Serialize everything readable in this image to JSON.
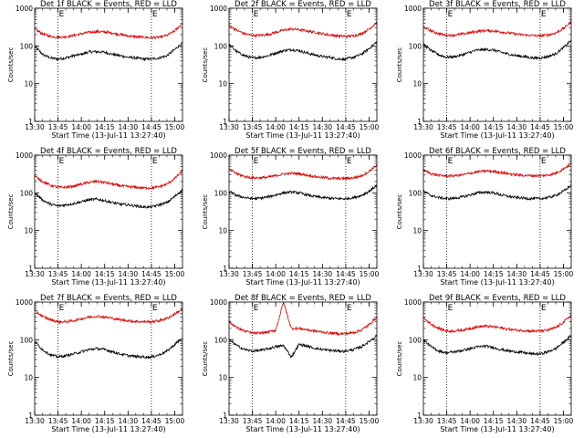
{
  "figure": {
    "type": "line-grid",
    "rows": 3,
    "cols": 3
  },
  "time_axis": {
    "start": "13:30",
    "end": "15:05",
    "tick_labels": [
      "13:30",
      "13:45",
      "14:00",
      "14:15",
      "14:30",
      "14:45",
      "15:00"
    ],
    "tick_minutes": [
      0,
      15,
      30,
      45,
      60,
      75,
      90
    ],
    "xlabel": "Start Time (13-Jul-11 13:27:40)"
  },
  "y_axis": {
    "scale": "log",
    "range": [
      1,
      1000
    ],
    "tick_labels": [
      "1",
      "10",
      "100",
      "1000"
    ],
    "ylabel": "Counts/sec"
  },
  "markers": {
    "label": "E",
    "lines_at": [
      "13:45",
      "14:45"
    ]
  },
  "colors": {
    "events": "#000000",
    "lld": "#dd0000",
    "frame": "#000000"
  },
  "chart_data": [
    {
      "type": "line",
      "title": "Det 1f BLACK = Events, RED = LLD",
      "x": [
        "13:30",
        "13:35",
        "13:40",
        "13:45",
        "13:50",
        "13:55",
        "14:00",
        "14:05",
        "14:10",
        "14:15",
        "14:20",
        "14:25",
        "14:30",
        "14:35",
        "14:40",
        "14:45",
        "14:50",
        "14:55",
        "15:00",
        "15:05"
      ],
      "series": [
        {
          "name": "Events",
          "values": [
            100,
            60,
            48,
            45,
            48,
            55,
            60,
            70,
            70,
            68,
            60,
            55,
            50,
            48,
            45,
            45,
            48,
            55,
            80,
            120
          ]
        },
        {
          "name": "LLD",
          "values": [
            280,
            210,
            180,
            170,
            175,
            190,
            210,
            230,
            240,
            235,
            220,
            200,
            185,
            175,
            170,
            165,
            170,
            190,
            250,
            400
          ]
        }
      ]
    },
    {
      "type": "line",
      "title": "Det 2f BLACK = Events, RED = LLD",
      "x": [
        "13:30",
        "13:35",
        "13:40",
        "13:45",
        "13:50",
        "13:55",
        "14:00",
        "14:05",
        "14:10",
        "14:15",
        "14:20",
        "14:25",
        "14:30",
        "14:35",
        "14:40",
        "14:45",
        "14:50",
        "14:55",
        "15:00",
        "15:05"
      ],
      "series": [
        {
          "name": "Events",
          "values": [
            110,
            70,
            55,
            48,
            50,
            55,
            65,
            75,
            80,
            75,
            65,
            58,
            52,
            50,
            45,
            45,
            50,
            60,
            85,
            130
          ]
        },
        {
          "name": "LLD",
          "values": [
            350,
            260,
            210,
            190,
            190,
            200,
            230,
            260,
            280,
            270,
            250,
            230,
            210,
            195,
            185,
            180,
            185,
            210,
            280,
            420
          ]
        }
      ]
    },
    {
      "type": "line",
      "title": "Det 3f BLACK = Events, RED = LLD",
      "x": [
        "13:30",
        "13:35",
        "13:40",
        "13:45",
        "13:50",
        "13:55",
        "14:00",
        "14:05",
        "14:10",
        "14:15",
        "14:20",
        "14:25",
        "14:30",
        "14:35",
        "14:40",
        "14:45",
        "14:50",
        "14:55",
        "15:00",
        "15:05"
      ],
      "series": [
        {
          "name": "Events",
          "values": [
            110,
            75,
            58,
            50,
            52,
            58,
            68,
            78,
            80,
            78,
            68,
            60,
            55,
            52,
            48,
            48,
            52,
            62,
            90,
            140
          ]
        },
        {
          "name": "LLD",
          "values": [
            320,
            250,
            210,
            190,
            195,
            205,
            225,
            245,
            255,
            250,
            235,
            220,
            205,
            195,
            190,
            185,
            195,
            220,
            290,
            430
          ]
        }
      ]
    },
    {
      "type": "line",
      "title": "Det 4f BLACK = Events, RED = LLD",
      "x": [
        "13:30",
        "13:35",
        "13:40",
        "13:45",
        "13:50",
        "13:55",
        "14:00",
        "14:05",
        "14:10",
        "14:15",
        "14:20",
        "14:25",
        "14:30",
        "14:35",
        "14:40",
        "14:45",
        "14:50",
        "14:55",
        "15:00",
        "15:05"
      ],
      "series": [
        {
          "name": "Events",
          "values": [
            100,
            65,
            50,
            45,
            48,
            52,
            58,
            65,
            68,
            62,
            55,
            50,
            48,
            45,
            42,
            42,
            48,
            55,
            80,
            120
          ]
        },
        {
          "name": "LLD",
          "values": [
            280,
            200,
            160,
            140,
            140,
            150,
            170,
            190,
            200,
            190,
            170,
            155,
            145,
            140,
            135,
            135,
            145,
            170,
            240,
            380
          ]
        }
      ]
    },
    {
      "type": "line",
      "title": "Det 5f BLACK = Events, RED = LLD",
      "x": [
        "13:30",
        "13:35",
        "13:40",
        "13:45",
        "13:50",
        "13:55",
        "14:00",
        "14:05",
        "14:10",
        "14:15",
        "14:20",
        "14:25",
        "14:30",
        "14:35",
        "14:40",
        "14:45",
        "14:50",
        "14:55",
        "15:00",
        "15:05"
      ],
      "series": [
        {
          "name": "Events",
          "values": [
            110,
            85,
            75,
            70,
            72,
            78,
            88,
            100,
            105,
            100,
            88,
            80,
            75,
            72,
            70,
            70,
            75,
            85,
            110,
            160
          ]
        },
        {
          "name": "LLD",
          "values": [
            420,
            320,
            270,
            250,
            250,
            260,
            285,
            315,
            330,
            320,
            295,
            270,
            255,
            245,
            240,
            240,
            250,
            280,
            370,
            550
          ]
        }
      ]
    },
    {
      "type": "line",
      "title": "Det 6f BLACK = Events, RED = LLD",
      "x": [
        "13:30",
        "13:35",
        "13:40",
        "13:45",
        "13:50",
        "13:55",
        "14:00",
        "14:05",
        "14:10",
        "14:15",
        "14:20",
        "14:25",
        "14:30",
        "14:35",
        "14:40",
        "14:45",
        "14:50",
        "14:55",
        "15:00",
        "15:05"
      ],
      "series": [
        {
          "name": "Events",
          "values": [
            110,
            85,
            75,
            70,
            72,
            78,
            88,
            100,
            105,
            100,
            88,
            80,
            75,
            72,
            70,
            70,
            75,
            85,
            110,
            160
          ]
        },
        {
          "name": "LLD",
          "values": [
            400,
            320,
            290,
            280,
            285,
            300,
            330,
            360,
            380,
            370,
            345,
            320,
            300,
            290,
            285,
            285,
            295,
            330,
            430,
            600
          ]
        }
      ]
    },
    {
      "type": "line",
      "title": "Det 7f BLACK = Events, RED = LLD",
      "x": [
        "13:30",
        "13:35",
        "13:40",
        "13:45",
        "13:50",
        "13:55",
        "14:00",
        "14:05",
        "14:10",
        "14:15",
        "14:20",
        "14:25",
        "14:30",
        "14:35",
        "14:40",
        "14:45",
        "14:50",
        "14:55",
        "15:00",
        "15:05"
      ],
      "series": [
        {
          "name": "Events",
          "values": [
            90,
            55,
            40,
            35,
            38,
            42,
            48,
            55,
            58,
            55,
            48,
            42,
            38,
            36,
            35,
            35,
            40,
            50,
            75,
            110
          ]
        },
        {
          "name": "LLD",
          "values": [
            600,
            420,
            340,
            300,
            300,
            320,
            360,
            400,
            420,
            400,
            370,
            340,
            320,
            305,
            300,
            300,
            320,
            370,
            480,
            650
          ]
        }
      ]
    },
    {
      "type": "line",
      "title": "Det 8f BLACK = Events, RED = LLD",
      "x": [
        "13:30",
        "13:35",
        "13:40",
        "13:45",
        "13:50",
        "13:55",
        "14:00",
        "14:05",
        "14:10",
        "14:15",
        "14:20",
        "14:25",
        "14:30",
        "14:35",
        "14:40",
        "14:45",
        "14:50",
        "14:55",
        "15:00",
        "15:05"
      ],
      "series": [
        {
          "name": "Events",
          "values": [
            100,
            70,
            55,
            50,
            52,
            58,
            65,
            70,
            35,
            75,
            68,
            60,
            55,
            52,
            50,
            50,
            55,
            65,
            90,
            130
          ]
        },
        {
          "name": "LLD",
          "values": [
            300,
            210,
            170,
            150,
            150,
            160,
            180,
            1000,
            200,
            200,
            185,
            170,
            160,
            150,
            145,
            145,
            155,
            180,
            250,
            400
          ]
        }
      ]
    },
    {
      "type": "line",
      "title": "Det 9f BLACK = Events, RED = LLD",
      "x": [
        "13:30",
        "13:35",
        "13:40",
        "13:45",
        "13:50",
        "13:55",
        "14:00",
        "14:05",
        "14:10",
        "14:15",
        "14:20",
        "14:25",
        "14:30",
        "14:35",
        "14:40",
        "14:45",
        "14:50",
        "14:55",
        "15:00",
        "15:05"
      ],
      "series": [
        {
          "name": "Events",
          "values": [
            100,
            65,
            50,
            45,
            48,
            52,
            58,
            65,
            68,
            62,
            55,
            50,
            48,
            45,
            42,
            42,
            48,
            58,
            85,
            130
          ]
        },
        {
          "name": "LLD",
          "values": [
            380,
            260,
            200,
            170,
            170,
            180,
            200,
            220,
            230,
            220,
            205,
            190,
            180,
            175,
            170,
            170,
            180,
            210,
            290,
            450
          ]
        }
      ]
    }
  ]
}
